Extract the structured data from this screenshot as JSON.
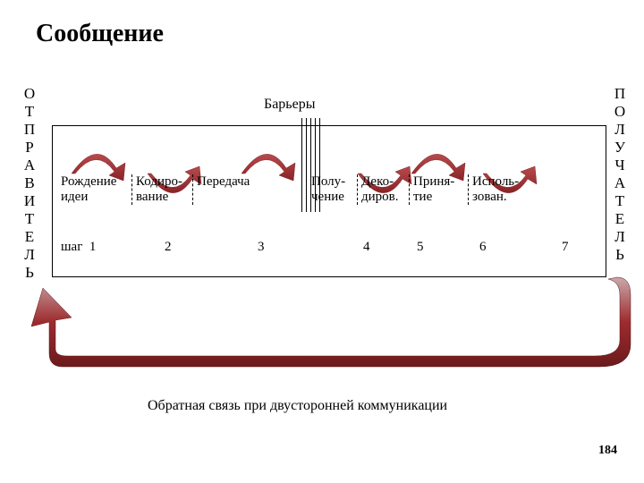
{
  "title": "Сообщение",
  "left_vertical": [
    "О",
    "Т",
    "П",
    "Р",
    "А",
    "В",
    "И",
    "Т",
    "Е",
    "Л",
    "Ь"
  ],
  "right_vertical": [
    "П",
    "О",
    "Л",
    "У",
    "Ч",
    "А",
    "Т",
    "Е",
    "Л",
    "Ь"
  ],
  "barriers_label": "Барьеры",
  "stages": [
    {
      "line1": "Рождение",
      "line2": "идеи"
    },
    {
      "line1": "Кодиро-",
      "line2": "вание"
    },
    {
      "line1": "Передача",
      "line2": ""
    },
    {
      "line1": "Полу-",
      "line2": "чение"
    },
    {
      "line1": "Деко-",
      "line2": "диров."
    },
    {
      "line1": "Приня-",
      "line2": "тие"
    },
    {
      "line1": "Исполь-",
      "line2": "зован."
    }
  ],
  "step_label": "шаг",
  "step_numbers": [
    "1",
    "2",
    "3",
    "4",
    "5",
    "6",
    "7"
  ],
  "feedback_label": "Обратная связь при двусторонней коммуникации",
  "page_number": "184",
  "colors": {
    "arrow_fill": "#9e2b2e",
    "arrow_dark": "#7a1f22",
    "text": "#000000",
    "bg": "#ffffff"
  }
}
